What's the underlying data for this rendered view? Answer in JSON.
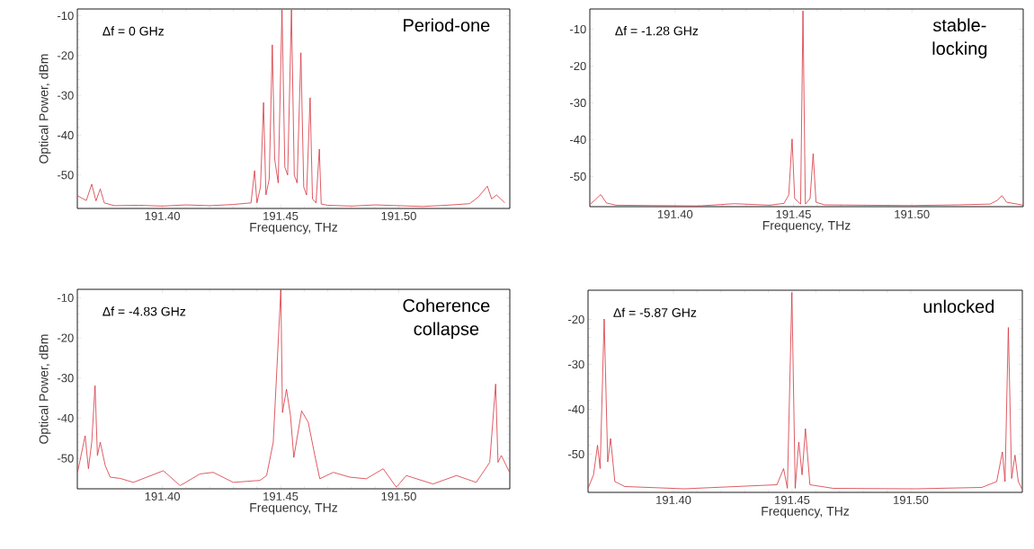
{
  "chart_data": [
    {
      "type": "line",
      "xlabel": "Frequency, THz",
      "ylabel": "Optical Power, dBm",
      "annotations": [
        "Δf = 0 GHz",
        "Period-one"
      ],
      "xlim": [
        191.364,
        191.547
      ],
      "ylim": [
        -58.4,
        -8.3
      ],
      "xticks": [
        {
          "value": 191.4,
          "label": "191.40"
        },
        {
          "value": 191.45,
          "label": "191.45"
        },
        {
          "value": 191.5,
          "label": "191.50"
        }
      ],
      "yticks": [
        -10,
        -20,
        -30,
        -40,
        -50
      ],
      "series": [
        {
          "color": "#d6323c",
          "x": [
            191.364,
            191.3678,
            191.3701,
            191.3719,
            191.3737,
            191.3754,
            191.3796,
            191.39,
            191.4,
            191.41,
            191.42,
            191.43,
            191.4375,
            191.439,
            191.44,
            191.4415,
            191.4428,
            191.4438,
            191.4452,
            191.4465,
            191.4475,
            191.449,
            191.4506,
            191.4518,
            191.453,
            191.4546,
            191.4558,
            191.457,
            191.4586,
            191.4598,
            191.461,
            191.4625,
            191.4635,
            191.465,
            191.4664,
            191.4672,
            191.47,
            191.48,
            191.49,
            191.5,
            191.51,
            191.52,
            191.53,
            191.5337,
            191.5375,
            191.5393,
            191.5414,
            191.5449
          ],
          "values": [
            -55.2,
            -56.4,
            -52.3,
            -56.5,
            -53.5,
            -57,
            -57.7,
            -57.6,
            -57.8,
            -57.5,
            -57.7,
            -57.4,
            -57,
            -48.9,
            -57,
            -53,
            -31.8,
            -55,
            -51,
            -17.3,
            -46,
            -52,
            -8.5,
            -48,
            -50,
            -8.5,
            -50,
            -52,
            -19.3,
            -53,
            -55,
            -30.6,
            -56,
            -57,
            -43.5,
            -57.3,
            -57.6,
            -57.8,
            -57.5,
            -57.7,
            -57.9,
            -57.6,
            -57.2,
            -55.5,
            -52.8,
            -56,
            -55,
            -57
          ]
        }
      ]
    },
    {
      "type": "line",
      "xlabel": "Frequency, THz",
      "annotations": [
        "Δf = -1.28 GHz",
        "stable-locking"
      ],
      "xlim": [
        191.364,
        191.547
      ],
      "ylim": [
        -58.2,
        -4.5
      ],
      "xticks": [
        {
          "value": 191.4,
          "label": "191.40"
        },
        {
          "value": 191.45,
          "label": "191.45"
        },
        {
          "value": 191.5,
          "label": "191.50"
        }
      ],
      "yticks": [
        -10,
        -20,
        -30,
        -40,
        -50
      ],
      "series": [
        {
          "color": "#d6323c",
          "x": [
            191.364,
            191.366,
            191.3686,
            191.371,
            191.375,
            191.39,
            191.41,
            191.425,
            191.44,
            191.446,
            191.448,
            191.4494,
            191.4505,
            191.453,
            191.454,
            191.455,
            191.457,
            191.4583,
            191.4595,
            191.463,
            191.48,
            191.5,
            191.52,
            191.533,
            191.536,
            191.538,
            191.54,
            191.547
          ],
          "values": [
            -57.6,
            -56.5,
            -54.9,
            -57.2,
            -57.8,
            -57.9,
            -58,
            -57.4,
            -57.8,
            -57.3,
            -55,
            -39.8,
            -56,
            -57.5,
            -5,
            -57.5,
            -56,
            -43.8,
            -57,
            -57.7,
            -57.8,
            -57.9,
            -57.7,
            -57.5,
            -56.5,
            -55.2,
            -57,
            -57.8
          ]
        }
      ]
    },
    {
      "type": "line",
      "xlabel": "Frequency, THz",
      "ylabel": "Optical Power, dBm",
      "annotations": [
        "Δf = -4.83 GHz",
        "Coherence collapse"
      ],
      "xlim": [
        191.364,
        191.547
      ],
      "ylim": [
        -57.6,
        -7.9
      ],
      "xticks": [
        {
          "value": 191.4,
          "label": "191.40"
        },
        {
          "value": 191.45,
          "label": "191.45"
        },
        {
          "value": 191.5,
          "label": "191.50"
        }
      ],
      "yticks": [
        -10,
        -20,
        -30,
        -40,
        -50
      ],
      "series": [
        {
          "color": "#d6323c",
          "x": [
            191.3641,
            191.3673,
            191.3687,
            191.3701,
            191.3715,
            191.3725,
            191.3737,
            191.3758,
            191.3779,
            191.3821,
            191.3877,
            191.4004,
            191.4075,
            191.4159,
            191.4215,
            191.43,
            191.4413,
            191.4441,
            191.4469,
            191.4501,
            191.4508,
            191.4525,
            191.4542,
            191.4556,
            191.4589,
            191.4617,
            191.4645,
            191.4666,
            191.4723,
            191.4793,
            191.4863,
            191.4934,
            191.499,
            191.5032,
            191.5145,
            191.5244,
            191.5328,
            191.5385,
            191.541,
            191.542,
            191.5434,
            191.5469
          ],
          "values": [
            -53.5,
            -44.4,
            -52.6,
            -46,
            -31.9,
            -49.3,
            -46,
            -51.8,
            -54.7,
            -55,
            -56,
            -53.1,
            -56.8,
            -53.9,
            -53.5,
            -56,
            -55.5,
            -54.3,
            -46,
            -8,
            -38.6,
            -32.8,
            -39.4,
            -49.8,
            -38.2,
            -41,
            -49.3,
            -55.1,
            -53.5,
            -54.7,
            -55.1,
            -52.6,
            -57.2,
            -54.3,
            -56.4,
            -54.3,
            -56,
            -51,
            -31.5,
            -51,
            -49.3,
            -53.5
          ]
        }
      ]
    },
    {
      "type": "line",
      "xlabel": "Frequency, THz",
      "annotations": [
        "Δf = -5.87 GHz",
        "unlocked"
      ],
      "xlim": [
        191.364,
        191.547
      ],
      "ylim": [
        -58.5,
        -13.5
      ],
      "xticks": [
        {
          "value": 191.4,
          "label": "191.40"
        },
        {
          "value": 191.45,
          "label": "191.45"
        },
        {
          "value": 191.5,
          "label": "191.50"
        }
      ],
      "yticks": [
        -20,
        -30,
        -40,
        -50
      ],
      "series": [
        {
          "color": "#d6323c",
          "x": [
            191.364,
            191.3663,
            191.368,
            191.3691,
            191.3708,
            191.3723,
            191.3735,
            191.3753,
            191.3795,
            191.4046,
            191.4436,
            191.4464,
            191.448,
            191.4499,
            191.4513,
            191.4528,
            191.4542,
            191.4556,
            191.4575,
            191.4673,
            191.5021,
            191.5299,
            191.5362,
            191.5386,
            191.5397,
            191.5411,
            191.5425,
            191.5439,
            191.5453,
            191.5468
          ],
          "values": [
            -57.6,
            -54.6,
            -48,
            -53.2,
            -19.9,
            -51.7,
            -46.5,
            -56.1,
            -57.2,
            -57.7,
            -56.8,
            -53.2,
            -57.6,
            -14,
            -57.6,
            -47.3,
            -54.6,
            -44.3,
            -56.8,
            -57.6,
            -57.7,
            -57.4,
            -56.1,
            -49.5,
            -56.1,
            -21.8,
            -55.4,
            -50.2,
            -56.1,
            -57.7
          ]
        }
      ]
    }
  ]
}
